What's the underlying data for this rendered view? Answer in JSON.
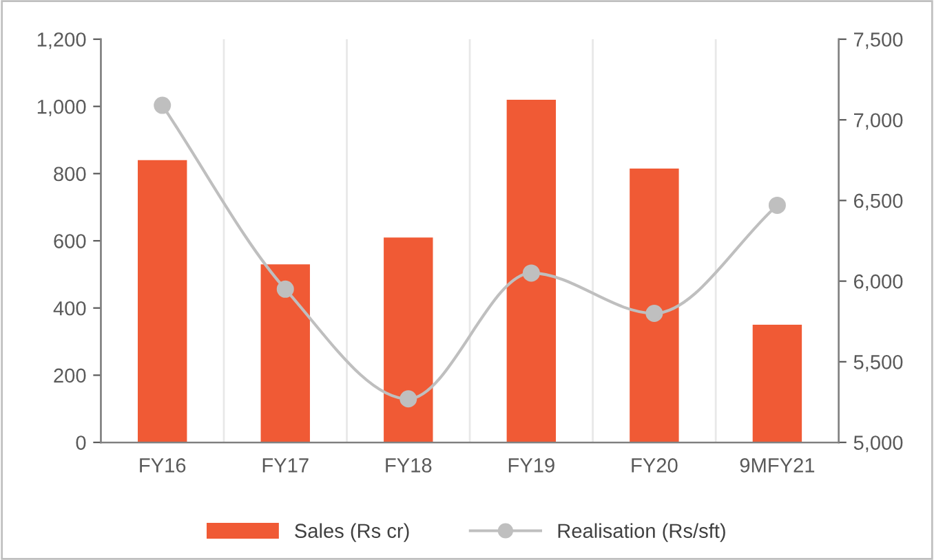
{
  "chart_data": {
    "type": "bar",
    "categories": [
      "FY16",
      "FY17",
      "FY18",
      "FY19",
      "FY20",
      "9MFY21"
    ],
    "series": [
      {
        "name": "Sales (Rs cr)",
        "color": "#f05a35",
        "values": [
          840,
          530,
          610,
          1020,
          815,
          350
        ]
      },
      {
        "name": "Realisation (Rs/sft)",
        "type": "line",
        "axis": "y2",
        "color": "#bfbfbf",
        "marker": "circle",
        "values": [
          7090,
          5950,
          5270,
          6050,
          5800,
          6470
        ]
      }
    ],
    "ylim": [
      0,
      1200
    ],
    "yticks": [
      {
        "value": 0,
        "label": "0"
      },
      {
        "value": 200,
        "label": "200"
      },
      {
        "value": 400,
        "label": "400"
      },
      {
        "value": 600,
        "label": "600"
      },
      {
        "value": 800,
        "label": "800"
      },
      {
        "value": 1000,
        "label": "1,000"
      },
      {
        "value": 1200,
        "label": "1,200"
      }
    ],
    "y2lim": [
      5000,
      7500
    ],
    "y2ticks": [
      {
        "value": 5000,
        "label": "5,000"
      },
      {
        "value": 5500,
        "label": "5,500"
      },
      {
        "value": 6000,
        "label": "6,000"
      },
      {
        "value": 6500,
        "label": "6,500"
      },
      {
        "value": 7000,
        "label": "7,000"
      },
      {
        "value": 7500,
        "label": "7,500"
      }
    ],
    "grid": "x",
    "legend": "bottom"
  }
}
